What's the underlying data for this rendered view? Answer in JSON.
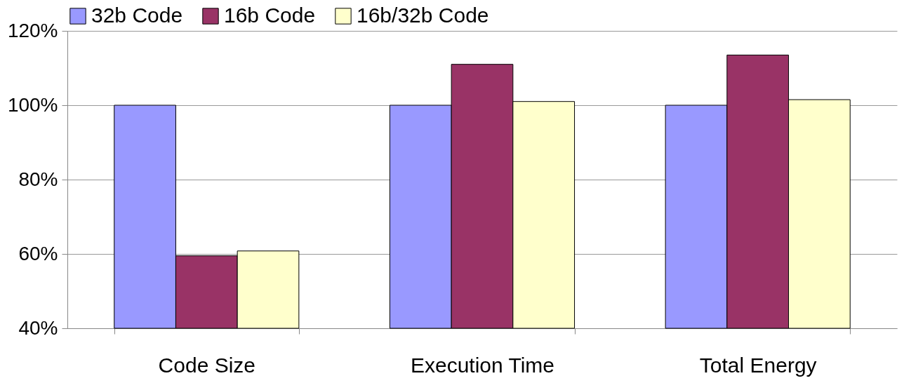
{
  "chart_data": {
    "type": "bar",
    "categories": [
      "Code Size",
      "Execution Time",
      "Total Energy"
    ],
    "series": [
      {
        "name": "32b Code",
        "color": "#9999ff",
        "values": [
          100,
          100,
          100
        ]
      },
      {
        "name": "16b Code",
        "color": "#993366",
        "values": [
          59.5,
          111,
          113.5
        ]
      },
      {
        "name": "16b/32b Code",
        "color": "#ffffcc",
        "values": [
          60.8,
          101,
          101.5
        ]
      }
    ],
    "ylim": [
      40,
      120
    ],
    "yticks": [
      {
        "value": 40,
        "label": "40%"
      },
      {
        "value": 60,
        "label": "60%"
      },
      {
        "value": 80,
        "label": "80%"
      },
      {
        "value": 100,
        "label": "100%"
      },
      {
        "value": 120,
        "label": "120%"
      }
    ],
    "grid": "y",
    "legend": "top"
  }
}
